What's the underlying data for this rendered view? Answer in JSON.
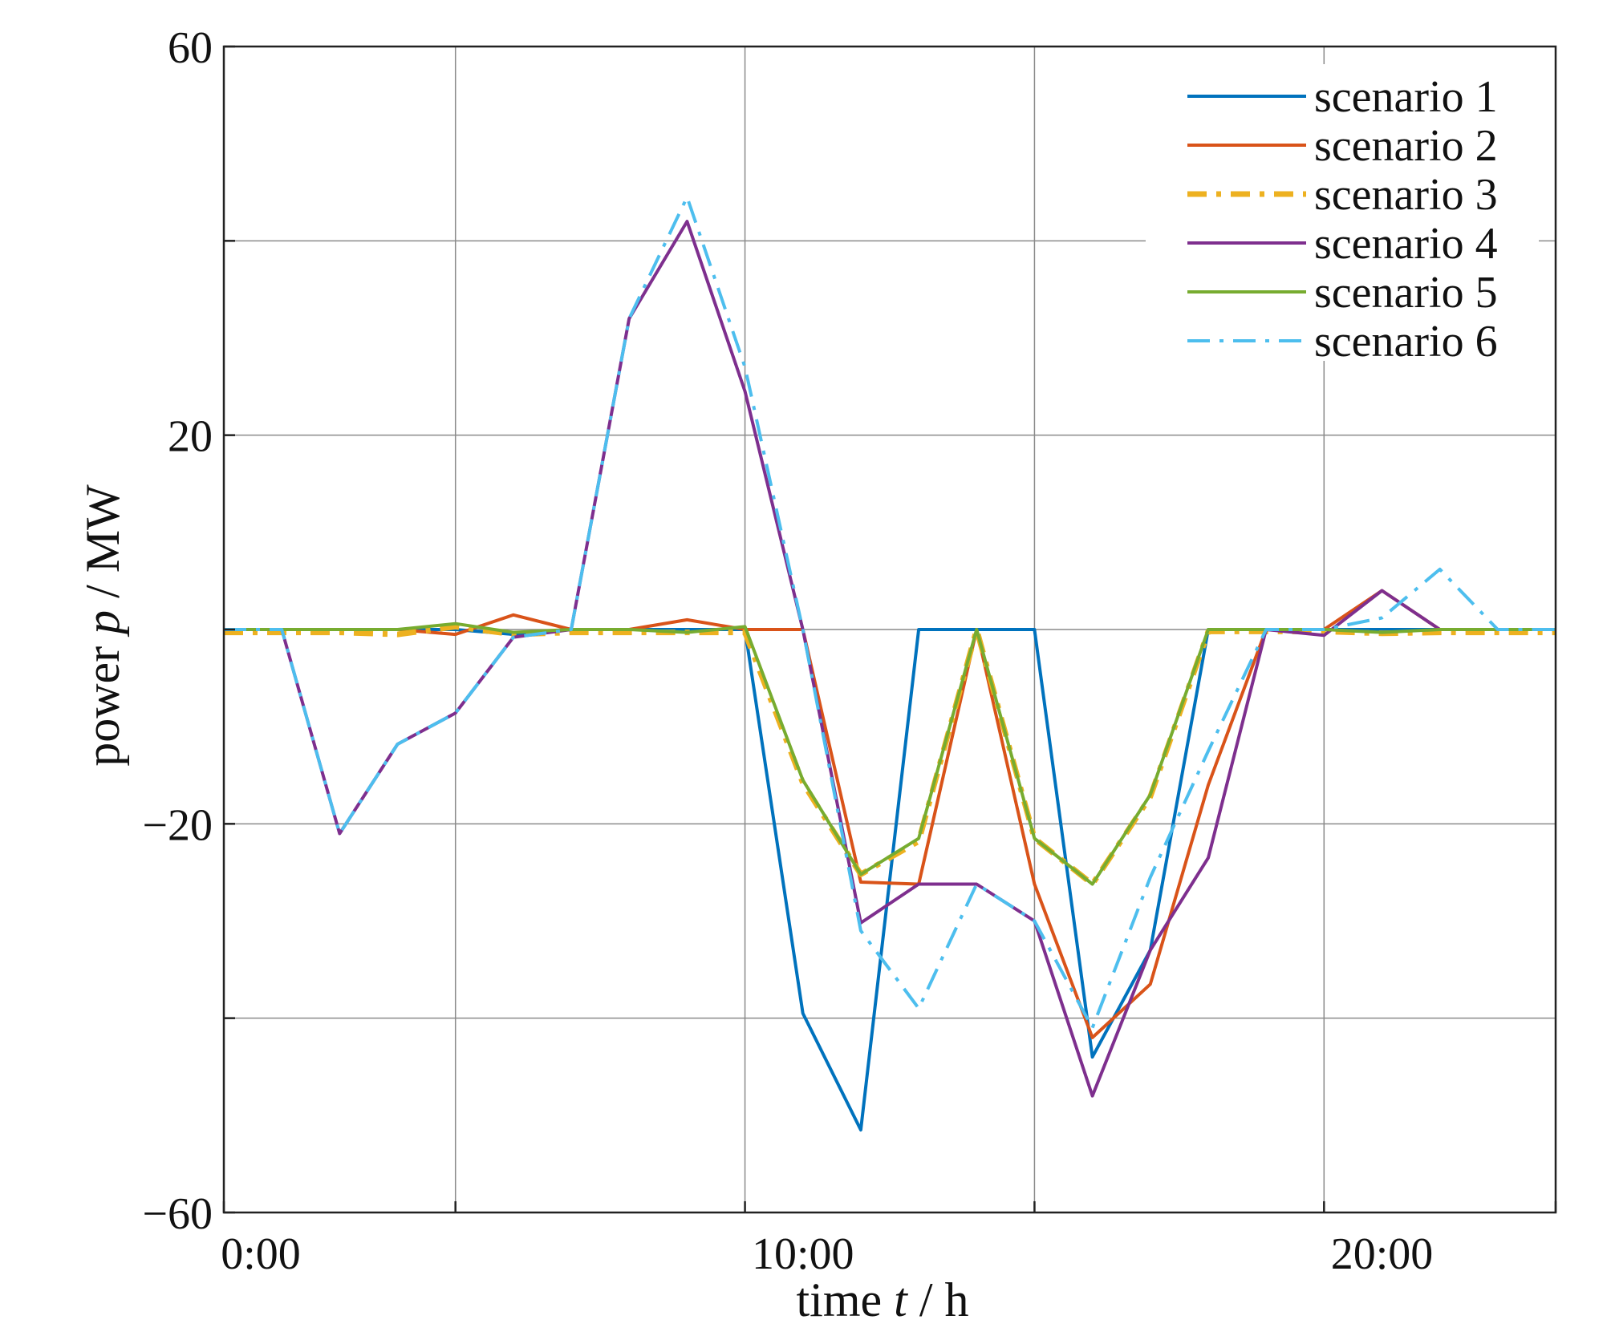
{
  "chart_data": {
    "type": "line",
    "title": "",
    "xlabel": {
      "pre": "time ",
      "var": "t",
      "post": " / h"
    },
    "ylabel": {
      "pre": "power  ",
      "var": "p",
      "post": " / MW"
    },
    "xlim": [
      0,
      23
    ],
    "ylim": [
      -60,
      60
    ],
    "xticks": [
      {
        "value": 0,
        "label": "0:00"
      },
      {
        "value": 10,
        "label": "10:00"
      },
      {
        "value": 20,
        "label": "20:00"
      }
    ],
    "xgrid": [
      0,
      4,
      9,
      14,
      19,
      23
    ],
    "yticks": [
      {
        "value": 60,
        "label": "60"
      },
      {
        "value": 20,
        "label": "20"
      },
      {
        "value": -20,
        "label": "−20"
      },
      {
        "value": -60,
        "label": "−60"
      }
    ],
    "ygrid": [
      60,
      40,
      20,
      0,
      -20,
      -40,
      -60
    ],
    "grid": true,
    "legend_position": "top-right",
    "series": [
      {
        "name": "scenario 1",
        "color": "#0072BD",
        "dash": "solid",
        "x": [
          0,
          1,
          2,
          3,
          4,
          5,
          6,
          7,
          8,
          9,
          10,
          11,
          12,
          13,
          14,
          15,
          16,
          17,
          18,
          19,
          20,
          21,
          22,
          23
        ],
        "y": [
          0,
          0,
          0,
          0,
          0,
          -0.5,
          0,
          0,
          0,
          0,
          -39.5,
          -51.5,
          0,
          0,
          0,
          -44,
          -33,
          0,
          0,
          0,
          0,
          0,
          0,
          0
        ]
      },
      {
        "name": "scenario 2",
        "color": "#D95319",
        "dash": "solid",
        "x": [
          0,
          1,
          2,
          3,
          4,
          5,
          6,
          7,
          8,
          9,
          10,
          11,
          12,
          13,
          14,
          15,
          16,
          17,
          18,
          19,
          20,
          21,
          22,
          23
        ],
        "y": [
          0,
          0,
          0,
          0,
          -0.5,
          1.5,
          0,
          0,
          1,
          0,
          0,
          -26,
          -26.2,
          0,
          -26.2,
          -42,
          -36.5,
          -16,
          0,
          0,
          4,
          0,
          0,
          0
        ]
      },
      {
        "name": "scenario 3",
        "color": "#EDB120",
        "dash": "dashdot-thick",
        "x": [
          0,
          1,
          2,
          3,
          4,
          5,
          6,
          7,
          8,
          9,
          10,
          11,
          12,
          13,
          14,
          15,
          16,
          17,
          18,
          19,
          20,
          21,
          22,
          23
        ],
        "y": [
          -0.3,
          -0.3,
          -0.3,
          -0.5,
          0.3,
          -0.5,
          -0.3,
          -0.3,
          -0.3,
          -0.3,
          -15.8,
          -25.2,
          -21.8,
          0,
          -21.5,
          -26.2,
          -17.2,
          -0.2,
          -0.2,
          -0.2,
          -0.4,
          -0.3,
          -0.3,
          -0.3
        ]
      },
      {
        "name": "scenario 4",
        "color": "#7E2F8E",
        "dash": "solid",
        "x": [
          0,
          1,
          2,
          3,
          4,
          5,
          6,
          7,
          8,
          9,
          10,
          11,
          12,
          13,
          14,
          15,
          16,
          17,
          18,
          19,
          20,
          21,
          22,
          23
        ],
        "y": [
          0,
          0,
          -21,
          -11.8,
          -8.6,
          -0.8,
          0,
          32,
          42,
          24.5,
          0,
          -30.2,
          -26.2,
          -26.2,
          -30,
          -48,
          -33,
          -23.5,
          0,
          -0.6,
          4,
          0,
          0,
          0
        ]
      },
      {
        "name": "scenario 5",
        "color": "#77AC30",
        "dash": "solid",
        "x": [
          0,
          1,
          2,
          3,
          4,
          5,
          6,
          7,
          8,
          9,
          10,
          11,
          12,
          13,
          14,
          15,
          16,
          17,
          18,
          19,
          20,
          21,
          22,
          23
        ],
        "y": [
          0,
          0,
          0,
          0,
          0.6,
          -0.3,
          0,
          0,
          -0.3,
          0.3,
          -15.5,
          -25.2,
          -21.5,
          0,
          -21.5,
          -26.2,
          -17,
          0,
          0,
          0,
          -0.3,
          0,
          0,
          0
        ]
      },
      {
        "name": "scenario 6",
        "color": "#4DBEEE",
        "dash": "dashdot",
        "x": [
          0,
          1,
          2,
          3,
          4,
          5,
          6,
          7,
          8,
          9,
          10,
          11,
          12,
          13,
          14,
          15,
          16,
          17,
          18,
          19,
          20,
          21,
          22,
          23
        ],
        "y": [
          0,
          0,
          -21,
          -11.8,
          -8.6,
          -0.8,
          0,
          32,
          44.5,
          27,
          0,
          -31,
          -39,
          -26.2,
          -30,
          -41,
          -25.5,
          -12.5,
          0,
          0,
          1.2,
          6.2,
          0,
          0
        ]
      }
    ]
  }
}
